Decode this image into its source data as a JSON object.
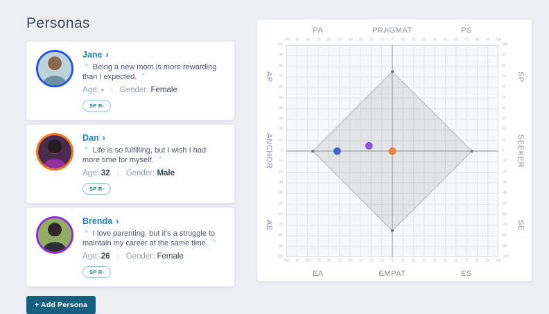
{
  "page": {
    "title": "Personas",
    "background": "#edeff4"
  },
  "labels": {
    "age": "Age:",
    "gender": "Gender:",
    "separator": "|"
  },
  "add_persona": {
    "label": "+ Add Persona",
    "background": "#15607f"
  },
  "personas": [
    {
      "name": "Jane",
      "quote": "Being a new mom is more rewarding than I expected.",
      "age": "-",
      "age_strong": false,
      "gender": "Female",
      "gender_strong": false,
      "badge": "SP R-",
      "ring_color": "#2257e6",
      "dot_color": "#3f63d2",
      "avatar": {
        "bg": "#bdd3dc",
        "hair": "#8a6a4e",
        "skin": "#ecc9ab",
        "shirt": "#6f8fa6"
      }
    },
    {
      "name": "Dan",
      "quote": "Life is so fulfilling, but I wish I had more time for myself.",
      "age": "32",
      "age_strong": true,
      "gender": "Male",
      "gender_strong": true,
      "badge": "SP R-",
      "ring_color": "#f07918",
      "dot_color": "#f0813a",
      "avatar": {
        "bg": "#4a2a4e",
        "hair": "#241a20",
        "skin": "#8a5a3c",
        "shirt": "#93309b"
      }
    },
    {
      "name": "Brenda",
      "quote": "I love parenting, but it's a struggle to maintain my career at the same time.",
      "age": "26",
      "age_strong": true,
      "gender": "Female",
      "gender_strong": false,
      "badge": "SP R-",
      "ring_color": "#8f2bd4",
      "dot_color": "#8e53d8",
      "avatar": {
        "bg": "#8fae62",
        "hair": "#33262b",
        "skin": "#dfb091",
        "shirt": "#2c2f38"
      }
    }
  ],
  "chart_data": {
    "type": "scatter",
    "axis_range": [
      -100,
      100
    ],
    "tick_step": 10,
    "ticks": [
      -100,
      -90,
      -80,
      -70,
      -60,
      -50,
      -40,
      -30,
      -20,
      -10,
      0,
      10,
      20,
      30,
      40,
      50,
      60,
      70,
      80,
      90,
      100
    ],
    "grid": true,
    "axis_labels": {
      "top": [
        {
          "text": "PA",
          "pos": -70
        },
        {
          "text": "PRAGMAT",
          "pos": 0
        },
        {
          "text": "PS",
          "pos": 70
        }
      ],
      "bottom": [
        {
          "text": "EA",
          "pos": -70
        },
        {
          "text": "EMPAT",
          "pos": 0
        },
        {
          "text": "ES",
          "pos": 70
        }
      ],
      "left": [
        {
          "text": "AP",
          "pos": 70
        },
        {
          "text": "ANCHOR",
          "pos": 0
        },
        {
          "text": "AE",
          "pos": -70
        }
      ],
      "right": [
        {
          "text": "SP",
          "pos": 70
        },
        {
          "text": "SEEKER",
          "pos": 0
        },
        {
          "text": "SE",
          "pos": -70
        }
      ]
    },
    "diamond_vertices": [
      [
        0,
        75
      ],
      [
        75,
        0
      ],
      [
        0,
        -75
      ],
      [
        -75,
        0
      ]
    ],
    "points": [
      {
        "persona": "Jane",
        "x": -52,
        "y": 0,
        "color": "#3f63d2"
      },
      {
        "persona": "Brenda",
        "x": -22,
        "y": 5,
        "color": "#8e53d8"
      },
      {
        "persona": "Dan",
        "x": 0,
        "y": 0,
        "color": "#f0813a"
      }
    ],
    "colors": {
      "plot_bg": "#f7f8f9",
      "grid_line": "#e3e5e8",
      "zero_line": "#9b9ea3",
      "diamond_fill": "rgba(125,128,134,0.17)",
      "diamond_stroke": "#b4b6ba",
      "vertex_dot": "#717477",
      "tick_text": "#b5bac1",
      "axis_text": "#8c9196"
    }
  }
}
